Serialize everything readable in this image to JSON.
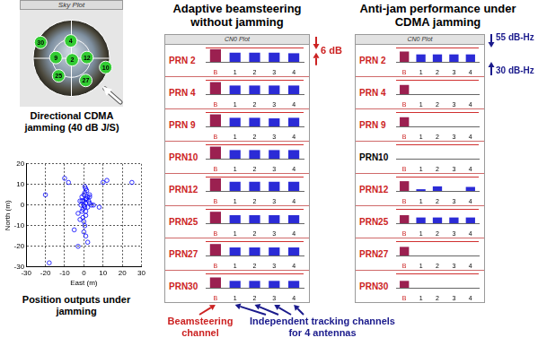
{
  "chart_data": [
    {
      "type": "polar_scatter",
      "title": "Sky Plot",
      "caption": "Directional CDMA jamming (40 dB J/S)",
      "elevation_lim": [
        0,
        90
      ],
      "color": "#33cc33",
      "points": [
        {
          "label": "30",
          "azimuth": 299,
          "elevation": 13
        },
        {
          "label": "4",
          "azimuth": 358,
          "elevation": 49
        },
        {
          "label": "9",
          "azimuth": 273,
          "elevation": 56
        },
        {
          "label": "2",
          "azimuth": 153,
          "elevation": 86
        },
        {
          "label": "12",
          "azimuth": 87,
          "elevation": 56
        },
        {
          "label": "25",
          "azimuth": 214,
          "elevation": 40
        },
        {
          "label": "27",
          "azimuth": 149,
          "elevation": 29
        },
        {
          "label": "10",
          "azimuth": 106,
          "elevation": 12
        }
      ]
    },
    {
      "type": "scatter",
      "title": "Position outputs under jamming",
      "x_label": "East (m)",
      "y_label": "North (m)",
      "x": [
        0,
        1,
        -1,
        0.5,
        1.5,
        2,
        -0.5,
        0,
        1,
        0.5,
        2.5,
        3,
        -1.5,
        1,
        0,
        0.5,
        -1,
        2,
        1.5,
        0,
        -0.5,
        1,
        3,
        4,
        -2,
        0.5,
        1,
        -20,
        -18,
        -10,
        -8,
        -3,
        10,
        12,
        25,
        8,
        -5,
        -3,
        2,
        -2,
        1,
        0,
        -1,
        3,
        5
      ],
      "values": [
        0,
        1,
        2,
        -1,
        3,
        4,
        -2,
        5,
        -3,
        6,
        2,
        1,
        0,
        -5,
        -8,
        -10,
        4,
        -1,
        7,
        -13,
        -6,
        3,
        4,
        0,
        2,
        9,
        -15,
        5,
        -28,
        13,
        11,
        -20,
        11,
        12,
        11,
        -1,
        -12,
        -4,
        -18,
        -7,
        8,
        2,
        -3,
        5,
        0
      ],
      "xlim": [
        -30,
        30
      ],
      "xticks": [
        -30,
        -20,
        -10,
        0,
        10,
        20,
        30
      ],
      "ylim": [
        -30,
        20
      ],
      "yticks": [
        -30,
        -20,
        -10,
        0,
        10,
        20
      ],
      "grid": true,
      "marker": "circle",
      "color": "#0000ff"
    },
    {
      "type": "bar",
      "title": "Adaptive beamsteering without jamming",
      "subtitle": "CN0 Plot",
      "categories": [
        "B",
        "1",
        "2",
        "3",
        "4"
      ],
      "colors": [
        "#9b2050",
        "#2b2bd6",
        "#2b2bd6",
        "#2b2bd6",
        "#2b2bd6"
      ],
      "ylim": [
        30,
        55
      ],
      "yticks": [
        30,
        55
      ],
      "grid": true,
      "tick_labels": "x",
      "annotations": [
        {
          "text": "6 dB"
        }
      ],
      "channel_labels": [
        "Beamsteering channel",
        "Independent tracking channels for 4 antennas"
      ],
      "rows": [
        {
          "name": "PRN 2",
          "values": [
            52,
            46,
            46,
            46,
            45
          ]
        },
        {
          "name": "PRN 4",
          "values": [
            51,
            45,
            45,
            45,
            45
          ]
        },
        {
          "name": "PRN 9",
          "values": [
            51,
            45,
            45,
            44,
            45
          ]
        },
        {
          "name": "PRN10",
          "values": [
            51,
            45,
            45,
            45,
            45
          ]
        },
        {
          "name": "PRN12",
          "values": [
            52,
            46,
            46,
            46,
            46
          ]
        },
        {
          "name": "PRN25",
          "values": [
            50,
            44,
            44,
            44,
            44
          ]
        },
        {
          "name": "PRN27",
          "values": [
            50,
            44,
            44,
            44,
            44
          ]
        },
        {
          "name": "PRN30",
          "values": [
            48,
            42,
            42,
            42,
            42
          ]
        }
      ]
    },
    {
      "type": "bar",
      "title": "Anti-jam performance under CDMA jamming",
      "subtitle": "CN0 Plot",
      "categories": [
        "B",
        "1",
        "2",
        "3",
        "4"
      ],
      "colors": [
        "#9b2050",
        "#2b2bd6",
        "#2b2bd6",
        "#2b2bd6",
        "#2b2bd6"
      ],
      "ylim": [
        30,
        55
      ],
      "yticks": [
        30,
        55
      ],
      "grid": true,
      "tick_labels": "x",
      "annotations": [
        {
          "text": "55 dB-Hz",
          "value": 55
        },
        {
          "text": "30 dB-Hz",
          "value": 30
        }
      ],
      "rows": [
        {
          "name": "PRN 2",
          "values": [
            48,
            43,
            43,
            43,
            43
          ]
        },
        {
          "name": "PRN 4",
          "values": [
            46,
            null,
            null,
            null,
            null
          ]
        },
        {
          "name": "PRN 9",
          "values": [
            46,
            null,
            null,
            null,
            null
          ]
        },
        {
          "name": "PRN10",
          "values": [
            null,
            null,
            null,
            null,
            null
          ]
        },
        {
          "name": "PRN12",
          "values": [
            47,
            33,
            38,
            null,
            37
          ]
        },
        {
          "name": "PRN25",
          "values": [
            44,
            40,
            40,
            40,
            40
          ]
        },
        {
          "name": "PRN27",
          "values": [
            45,
            null,
            null,
            null,
            null
          ]
        },
        {
          "name": "PRN30",
          "values": [
            42,
            null,
            null,
            null,
            null
          ]
        }
      ]
    }
  ]
}
